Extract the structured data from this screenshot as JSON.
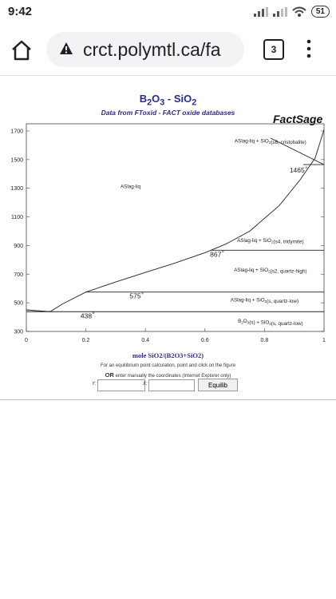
{
  "status": {
    "time": "9:42",
    "battery": "51"
  },
  "browser": {
    "url": "crct.polymtl.ca/fa",
    "tab_count": "3"
  },
  "page": {
    "title_parts": {
      "b": "B",
      "sub1": "2",
      "o": "O",
      "sub2": "3",
      "rest": " - SiO",
      "sub3": "2"
    },
    "subtitle": "Data from FToxid - FACT oxide databases",
    "brand": "FactSage",
    "xlabel": "mole SiO2/(B2O3+SiO2)",
    "instructions_line1": "For an equilibrium point calculation, point and click on the figure",
    "instructions_or": "OR",
    "instructions_line2": " enter manually the coordinates (Internet Explorer only)",
    "y_label": "Y:",
    "x_label": "X:",
    "y_value": "",
    "x_value": "",
    "equilib_button": "Equilib"
  },
  "chart_data": {
    "type": "line",
    "title": "B2O3 - SiO2",
    "subtitle": "Data from FToxid - FACT oxide databases",
    "xlabel": "mole SiO2/(B2O3+SiO2)",
    "ylabel": "",
    "xlim": [
      0,
      1
    ],
    "ylim": [
      300,
      1750
    ],
    "x_ticks": [
      "0",
      "0.2",
      "0.4",
      "0.6",
      "0.8",
      "1"
    ],
    "y_ticks": [
      "300",
      "500",
      "700",
      "900",
      "1100",
      "1300",
      "1500",
      "1700"
    ],
    "liquidus": [
      [
        0,
        450
      ],
      [
        0.08,
        438
      ],
      [
        0.12,
        490
      ],
      [
        0.2,
        575
      ],
      [
        0.3,
        645
      ],
      [
        0.4,
        712
      ],
      [
        0.5,
        778
      ],
      [
        0.6,
        850
      ],
      [
        0.67,
        910
      ],
      [
        0.75,
        1000
      ],
      [
        0.85,
        1180
      ],
      [
        0.92,
        1360
      ],
      [
        0.97,
        1510
      ],
      [
        1.0,
        1710
      ]
    ],
    "invariant_lines": [
      {
        "y": 438,
        "x": [
          0,
          1
        ],
        "label": "438"
      },
      {
        "y": 575,
        "x": [
          0.2,
          1
        ],
        "label": "575"
      },
      {
        "y": 867,
        "x": [
          0.62,
          1
        ],
        "label": "867"
      },
      {
        "y": 1465,
        "x": [
          0.93,
          1
        ],
        "label": "1465"
      }
    ],
    "b2o3_line": [
      [
        0,
        450
      ],
      [
        0.03,
        446
      ],
      [
        0.08,
        438
      ]
    ],
    "cristobalite_tridymite_line": [
      [
        0.82,
        1650
      ],
      [
        1.0,
        1465
      ]
    ],
    "regions": [
      {
        "label": "ASlag-liq",
        "x": 0.35,
        "y": 1300
      },
      {
        "label": "ASlag-liq + SiO2(s6, cristobalite)",
        "x": 0.82,
        "y": 1620
      },
      {
        "label": "ASlag-liq + SiO2(s4, tridymite)",
        "x": 0.82,
        "y": 925
      },
      {
        "label": "ASlag-liq + SiO2(s2, quartz-high)",
        "x": 0.82,
        "y": 718
      },
      {
        "label": "ASlag-liq + SiO2(s, quartz-low)",
        "x": 0.8,
        "y": 510
      },
      {
        "label": "B2O3(s) + SiO2(s, quartz-low)",
        "x": 0.82,
        "y": 362
      }
    ]
  }
}
